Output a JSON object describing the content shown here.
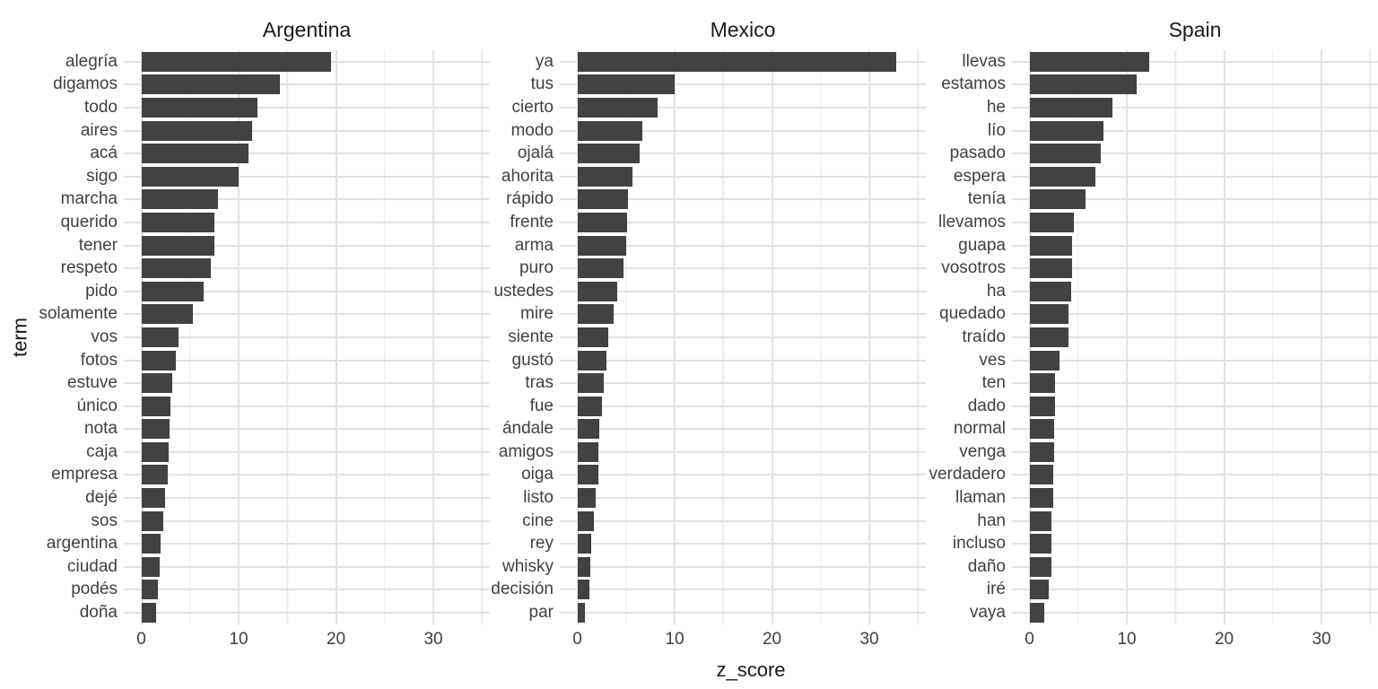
{
  "chart_data": {
    "type": "bar",
    "orientation": "horizontal",
    "title": "",
    "xlabel": "z_score",
    "ylabel": "term",
    "x_ticks": [
      0,
      10,
      20,
      30
    ],
    "x_minor_ticks": [
      5,
      15,
      25,
      35
    ],
    "xlim": [
      -1.8,
      35.8
    ],
    "grid": true,
    "legend_position": "none",
    "facets": [
      {
        "title": "Argentina",
        "terms": [
          "alegría",
          "digamos",
          "todo",
          "aires",
          "acá",
          "sigo",
          "marcha",
          "querido",
          "tener",
          "respeto",
          "pido",
          "solamente",
          "vos",
          "fotos",
          "estuve",
          "único",
          "nota",
          "caja",
          "empresa",
          "dejé",
          "sos",
          "argentina",
          "ciudad",
          "podés",
          "doña"
        ],
        "values": [
          19.5,
          14.2,
          11.9,
          11.4,
          11.0,
          10.0,
          7.9,
          7.5,
          7.5,
          7.1,
          6.4,
          5.3,
          3.8,
          3.5,
          3.2,
          3.0,
          2.9,
          2.8,
          2.7,
          2.4,
          2.3,
          2.0,
          1.9,
          1.7,
          1.5
        ]
      },
      {
        "title": "Mexico",
        "terms": [
          "ya",
          "tus",
          "cierto",
          "modo",
          "ojalá",
          "ahorita",
          "rápido",
          "frente",
          "arma",
          "puro",
          "ustedes",
          "mire",
          "siente",
          "gustó",
          "tras",
          "fue",
          "ándale",
          "amigos",
          "oiga",
          "listo",
          "cine",
          "rey",
          "whisky",
          "decisión",
          "par"
        ],
        "values": [
          32.8,
          10.0,
          8.2,
          6.7,
          6.4,
          5.7,
          5.2,
          5.1,
          5.0,
          4.7,
          4.1,
          3.7,
          3.2,
          3.0,
          2.7,
          2.5,
          2.3,
          2.2,
          2.2,
          1.9,
          1.7,
          1.4,
          1.3,
          1.2,
          0.8
        ]
      },
      {
        "title": "Spain",
        "terms": [
          "llevas",
          "estamos",
          "he",
          "lío",
          "pasado",
          "espera",
          "tenía",
          "llevamos",
          "guapa",
          "vosotros",
          "ha",
          "quedado",
          "traído",
          "ves",
          "ten",
          "dado",
          "normal",
          "venga",
          "verdadero",
          "llaman",
          "han",
          "incluso",
          "daño",
          "iré",
          "vaya"
        ],
        "values": [
          12.3,
          11.0,
          8.5,
          7.6,
          7.3,
          6.8,
          5.8,
          4.6,
          4.4,
          4.4,
          4.3,
          4.0,
          4.0,
          3.1,
          2.6,
          2.6,
          2.5,
          2.5,
          2.4,
          2.4,
          2.3,
          2.3,
          2.3,
          2.0,
          1.5
        ]
      }
    ]
  },
  "colors": {
    "bar": "#424242",
    "grid_major": "#e2e2e2",
    "grid_minor": "#ececec",
    "axis_text": "#404040",
    "title_text": "#1a1a1a",
    "background": "#ffffff"
  }
}
